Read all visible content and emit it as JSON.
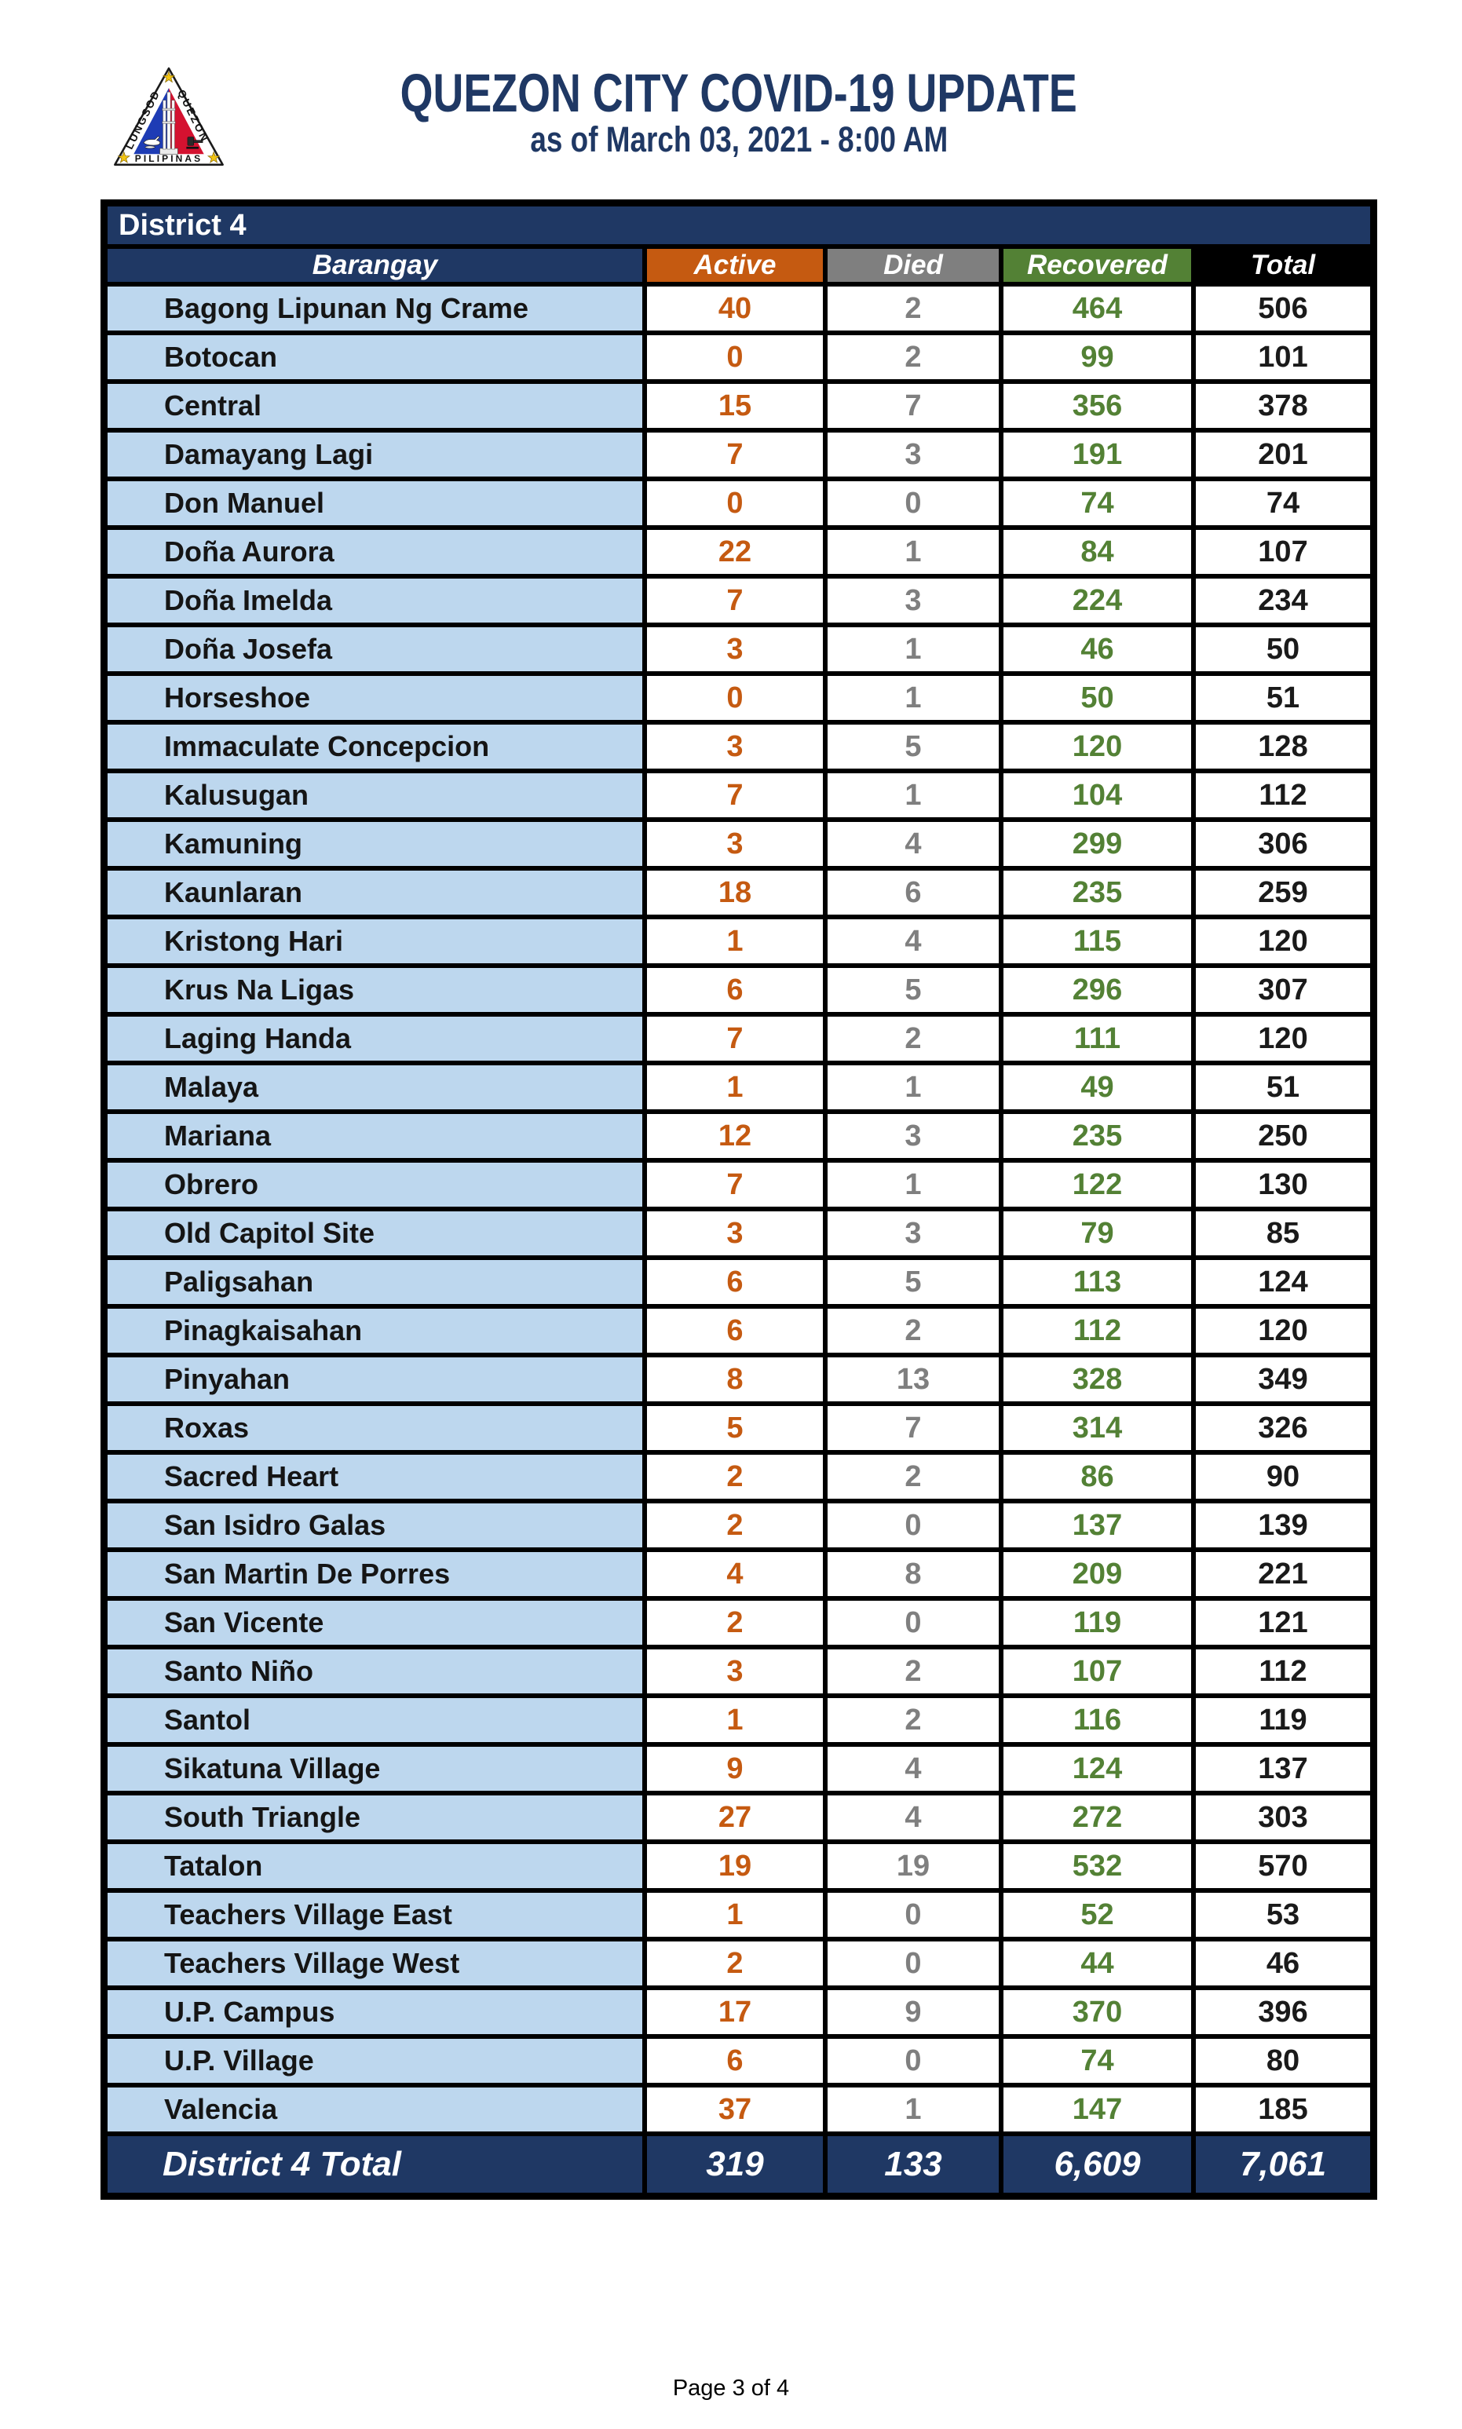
{
  "page": {
    "title": "QUEZON CITY COVID-19 UPDATE",
    "subtitle": "as of March 03, 2021 - 8:00 AM",
    "footer": "Page 3 of 4"
  },
  "logo": {
    "arc_left": "LUNGSOD",
    "arc_right": "QUEZON",
    "bottom": "PILIPINAS"
  },
  "table": {
    "district_label": "District 4",
    "headers": {
      "barangay": "Barangay",
      "active": "Active",
      "died": "Died",
      "recovered": "Recovered",
      "total": "Total"
    },
    "rows": [
      {
        "barangay": "Bagong Lipunan Ng Crame",
        "active": "40",
        "died": "2",
        "recovered": "464",
        "total": "506"
      },
      {
        "barangay": "Botocan",
        "active": "0",
        "died": "2",
        "recovered": "99",
        "total": "101"
      },
      {
        "barangay": "Central",
        "active": "15",
        "died": "7",
        "recovered": "356",
        "total": "378"
      },
      {
        "barangay": "Damayang Lagi",
        "active": "7",
        "died": "3",
        "recovered": "191",
        "total": "201"
      },
      {
        "barangay": "Don Manuel",
        "active": "0",
        "died": "0",
        "recovered": "74",
        "total": "74"
      },
      {
        "barangay": "Doña Aurora",
        "active": "22",
        "died": "1",
        "recovered": "84",
        "total": "107"
      },
      {
        "barangay": "Doña Imelda",
        "active": "7",
        "died": "3",
        "recovered": "224",
        "total": "234"
      },
      {
        "barangay": "Doña Josefa",
        "active": "3",
        "died": "1",
        "recovered": "46",
        "total": "50"
      },
      {
        "barangay": "Horseshoe",
        "active": "0",
        "died": "1",
        "recovered": "50",
        "total": "51"
      },
      {
        "barangay": "Immaculate Concepcion",
        "active": "3",
        "died": "5",
        "recovered": "120",
        "total": "128"
      },
      {
        "barangay": "Kalusugan",
        "active": "7",
        "died": "1",
        "recovered": "104",
        "total": "112"
      },
      {
        "barangay": "Kamuning",
        "active": "3",
        "died": "4",
        "recovered": "299",
        "total": "306"
      },
      {
        "barangay": "Kaunlaran",
        "active": "18",
        "died": "6",
        "recovered": "235",
        "total": "259"
      },
      {
        "barangay": "Kristong Hari",
        "active": "1",
        "died": "4",
        "recovered": "115",
        "total": "120"
      },
      {
        "barangay": "Krus Na Ligas",
        "active": "6",
        "died": "5",
        "recovered": "296",
        "total": "307"
      },
      {
        "barangay": "Laging Handa",
        "active": "7",
        "died": "2",
        "recovered": "111",
        "total": "120"
      },
      {
        "barangay": "Malaya",
        "active": "1",
        "died": "1",
        "recovered": "49",
        "total": "51"
      },
      {
        "barangay": "Mariana",
        "active": "12",
        "died": "3",
        "recovered": "235",
        "total": "250"
      },
      {
        "barangay": "Obrero",
        "active": "7",
        "died": "1",
        "recovered": "122",
        "total": "130"
      },
      {
        "barangay": "Old Capitol Site",
        "active": "3",
        "died": "3",
        "recovered": "79",
        "total": "85"
      },
      {
        "barangay": "Paligsahan",
        "active": "6",
        "died": "5",
        "recovered": "113",
        "total": "124"
      },
      {
        "barangay": "Pinagkaisahan",
        "active": "6",
        "died": "2",
        "recovered": "112",
        "total": "120"
      },
      {
        "barangay": "Pinyahan",
        "active": "8",
        "died": "13",
        "recovered": "328",
        "total": "349"
      },
      {
        "barangay": "Roxas",
        "active": "5",
        "died": "7",
        "recovered": "314",
        "total": "326"
      },
      {
        "barangay": "Sacred Heart",
        "active": "2",
        "died": "2",
        "recovered": "86",
        "total": "90"
      },
      {
        "barangay": "San Isidro Galas",
        "active": "2",
        "died": "0",
        "recovered": "137",
        "total": "139"
      },
      {
        "barangay": "San Martin De Porres",
        "active": "4",
        "died": "8",
        "recovered": "209",
        "total": "221"
      },
      {
        "barangay": "San Vicente",
        "active": "2",
        "died": "0",
        "recovered": "119",
        "total": "121"
      },
      {
        "barangay": "Santo Niño",
        "active": "3",
        "died": "2",
        "recovered": "107",
        "total": "112"
      },
      {
        "barangay": "Santol",
        "active": "1",
        "died": "2",
        "recovered": "116",
        "total": "119"
      },
      {
        "barangay": "Sikatuna Village",
        "active": "9",
        "died": "4",
        "recovered": "124",
        "total": "137"
      },
      {
        "barangay": "South Triangle",
        "active": "27",
        "died": "4",
        "recovered": "272",
        "total": "303"
      },
      {
        "barangay": "Tatalon",
        "active": "19",
        "died": "19",
        "recovered": "532",
        "total": "570"
      },
      {
        "barangay": "Teachers Village East",
        "active": "1",
        "died": "0",
        "recovered": "52",
        "total": "53"
      },
      {
        "barangay": "Teachers Village West",
        "active": "2",
        "died": "0",
        "recovered": "44",
        "total": "46"
      },
      {
        "barangay": "U.P. Campus",
        "active": "17",
        "died": "9",
        "recovered": "370",
        "total": "396"
      },
      {
        "barangay": "U.P. Village",
        "active": "6",
        "died": "0",
        "recovered": "74",
        "total": "80"
      },
      {
        "barangay": "Valencia",
        "active": "37",
        "died": "1",
        "recovered": "147",
        "total": "185"
      }
    ],
    "total_row": {
      "label": "District 4 Total",
      "active": "319",
      "died": "133",
      "recovered": "6,609",
      "total": "7,061"
    }
  },
  "colors": {
    "navy": "#1F3864",
    "orange": "#C55A11",
    "gray": "#7F7F7F",
    "green": "#538135",
    "light_blue": "#BDD7EE",
    "total_black": "#000000",
    "seal_blue": "#1E3CB5",
    "seal_red": "#D41230",
    "seal_gold": "#F3C513"
  }
}
